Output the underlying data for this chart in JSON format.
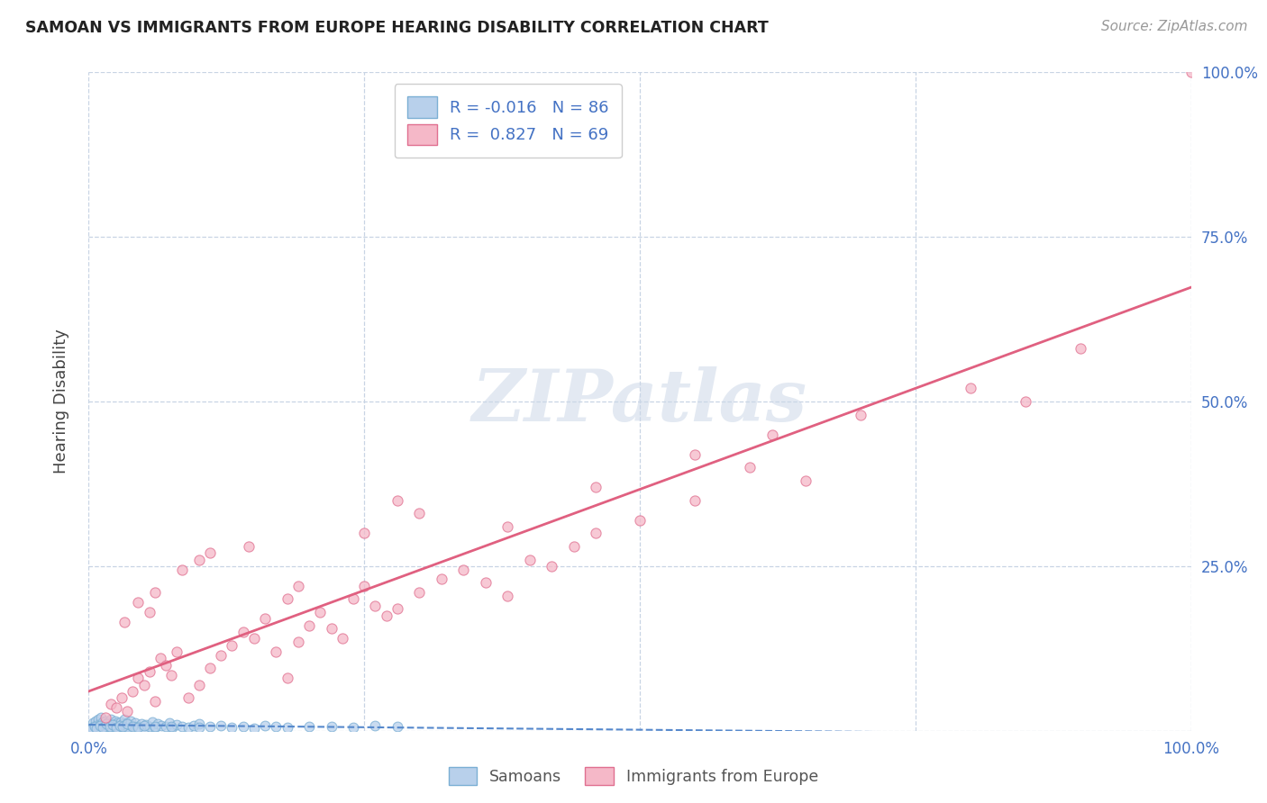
{
  "title": "SAMOAN VS IMMIGRANTS FROM EUROPE HEARING DISABILITY CORRELATION CHART",
  "source": "Source: ZipAtlas.com",
  "ylabel": "Hearing Disability",
  "R1": -0.016,
  "N1": 86,
  "R2": 0.827,
  "N2": 69,
  "color_blue_fill": "#b8d0eb",
  "color_blue_edge": "#7bafd4",
  "color_pink_fill": "#f5b8c8",
  "color_pink_edge": "#e07090",
  "color_blue_text": "#4472c4",
  "line_blue_color": "#5588cc",
  "line_pink_color": "#e06080",
  "watermark_color": "#ccd8e8",
  "background_color": "#ffffff",
  "grid_color": "#c8d4e4",
  "legend_label1": "Samoans",
  "legend_label2": "Immigrants from Europe",
  "samoans_x": [
    0.3,
    0.4,
    0.5,
    0.6,
    0.7,
    0.8,
    0.9,
    1.0,
    1.1,
    1.2,
    1.3,
    1.4,
    1.5,
    1.6,
    1.7,
    1.8,
    1.9,
    2.0,
    2.1,
    2.2,
    2.3,
    2.4,
    2.5,
    2.6,
    2.7,
    2.8,
    2.9,
    3.0,
    3.1,
    3.2,
    3.3,
    3.4,
    3.5,
    3.6,
    3.7,
    3.8,
    4.0,
    4.2,
    4.5,
    4.8,
    5.0,
    5.2,
    5.5,
    5.8,
    6.0,
    6.3,
    6.6,
    7.0,
    7.3,
    7.6,
    8.0,
    8.5,
    9.0,
    9.5,
    10.0,
    11.0,
    12.0,
    13.0,
    14.0,
    15.0,
    16.0,
    17.0,
    18.0,
    20.0,
    22.0,
    24.0,
    26.0,
    28.0,
    0.2,
    0.5,
    0.7,
    1.0,
    1.3,
    1.6,
    1.9,
    2.2,
    2.5,
    2.8,
    3.1,
    3.5,
    4.0,
    4.5,
    5.0,
    6.0,
    7.5,
    10.0
  ],
  "samoans_y": [
    0.5,
    1.2,
    0.8,
    1.5,
    0.4,
    0.9,
    1.8,
    1.0,
    2.0,
    0.6,
    1.3,
    0.7,
    1.5,
    0.3,
    1.2,
    0.8,
    0.5,
    1.8,
    0.4,
    1.0,
    0.7,
    1.5,
    0.9,
    1.2,
    0.5,
    0.8,
    1.3,
    0.6,
    1.0,
    1.8,
    0.4,
    0.7,
    1.2,
    0.5,
    0.9,
    1.5,
    0.8,
    1.2,
    0.6,
    1.0,
    0.4,
    0.9,
    0.7,
    1.3,
    0.5,
    1.0,
    0.8,
    0.6,
    1.2,
    0.5,
    0.9,
    0.7,
    0.5,
    0.8,
    1.0,
    0.6,
    0.8,
    0.5,
    0.7,
    0.4,
    0.8,
    0.6,
    0.5,
    0.7,
    0.6,
    0.5,
    0.8,
    0.6,
    0.3,
    0.6,
    0.4,
    0.8,
    0.5,
    1.0,
    0.7,
    0.9,
    0.5,
    0.8,
    0.6,
    1.0,
    0.7,
    0.5,
    0.8,
    0.6,
    0.7,
    0.5
  ],
  "europe_x": [
    1.5,
    2.0,
    2.5,
    3.0,
    3.5,
    4.0,
    4.5,
    5.0,
    5.5,
    6.0,
    6.5,
    7.0,
    7.5,
    8.0,
    9.0,
    10.0,
    11.0,
    12.0,
    13.0,
    14.0,
    15.0,
    16.0,
    17.0,
    18.0,
    19.0,
    20.0,
    21.0,
    22.0,
    23.0,
    24.0,
    25.0,
    26.0,
    27.0,
    28.0,
    30.0,
    32.0,
    34.0,
    36.0,
    38.0,
    40.0,
    42.0,
    44.0,
    46.0,
    50.0,
    55.0,
    60.0,
    65.0,
    85.0,
    100.0,
    3.2,
    4.5,
    6.0,
    8.5,
    11.0,
    14.5,
    19.0,
    25.0,
    30.0,
    38.0,
    46.0,
    55.0,
    62.0,
    70.0,
    80.0,
    90.0,
    5.5,
    10.0,
    18.0,
    28.0
  ],
  "europe_y": [
    2.0,
    4.0,
    3.5,
    5.0,
    3.0,
    6.0,
    8.0,
    7.0,
    9.0,
    4.5,
    11.0,
    10.0,
    8.5,
    12.0,
    5.0,
    7.0,
    9.5,
    11.5,
    13.0,
    15.0,
    14.0,
    17.0,
    12.0,
    8.0,
    13.5,
    16.0,
    18.0,
    15.5,
    14.0,
    20.0,
    22.0,
    19.0,
    17.5,
    18.5,
    21.0,
    23.0,
    24.5,
    22.5,
    20.5,
    26.0,
    25.0,
    28.0,
    30.0,
    32.0,
    35.0,
    40.0,
    38.0,
    50.0,
    100.0,
    16.5,
    19.5,
    21.0,
    24.5,
    27.0,
    28.0,
    22.0,
    30.0,
    33.0,
    31.0,
    37.0,
    42.0,
    45.0,
    48.0,
    52.0,
    58.0,
    18.0,
    26.0,
    20.0,
    35.0
  ]
}
